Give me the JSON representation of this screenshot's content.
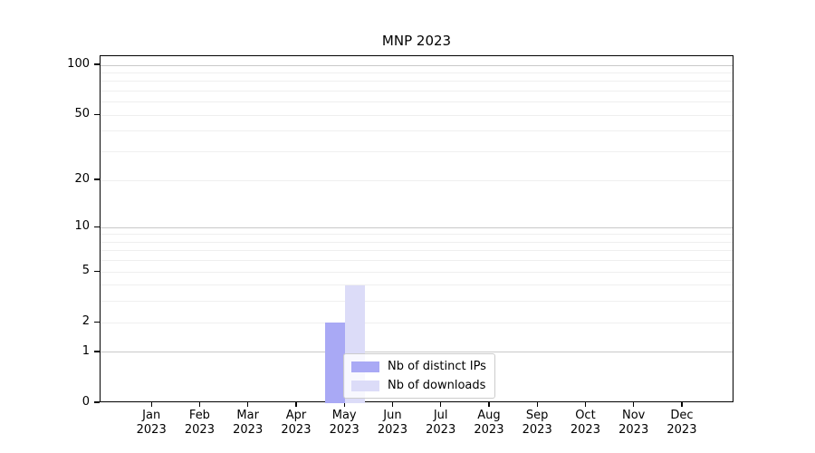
{
  "figure": {
    "title": "MNP 2023"
  },
  "chart_data": {
    "type": "bar",
    "title": "MNP 2023",
    "x_tick_months": [
      "Jan",
      "Feb",
      "Mar",
      "Apr",
      "May",
      "Jun",
      "Jul",
      "Aug",
      "Sep",
      "Oct",
      "Nov",
      "Dec"
    ],
    "x_tick_year": "2023",
    "series": [
      {
        "name": "Nb of distinct IPs",
        "color": "#a9a9f5",
        "values": [
          0,
          0,
          0,
          0,
          2,
          0,
          0,
          0,
          0,
          0,
          0,
          0
        ]
      },
      {
        "name": "Nb of downloads",
        "color": "#dcdcf8",
        "values": [
          0,
          0,
          0,
          0,
          4,
          0,
          0,
          0,
          0,
          0,
          0,
          0
        ]
      }
    ],
    "y_ticks": [
      0,
      1,
      2,
      5,
      10,
      20,
      50,
      100
    ],
    "y_scale": "log1p",
    "ylim": [
      0,
      113
    ],
    "xlabel": "",
    "ylabel": "",
    "grid": {
      "major_lines": [
        1,
        10,
        100
      ],
      "minor_lines": [
        2,
        3,
        4,
        5,
        6,
        7,
        8,
        9,
        20,
        30,
        40,
        50,
        60,
        70,
        80,
        90
      ],
      "major_color": "#c9c9c9",
      "minor_color": "#efefef"
    },
    "legend": {
      "position": "lower center-right"
    }
  },
  "colors": {
    "background": "#ffffff",
    "spine": "#000000",
    "text": "#000000",
    "legend_border": "#cccccc"
  }
}
